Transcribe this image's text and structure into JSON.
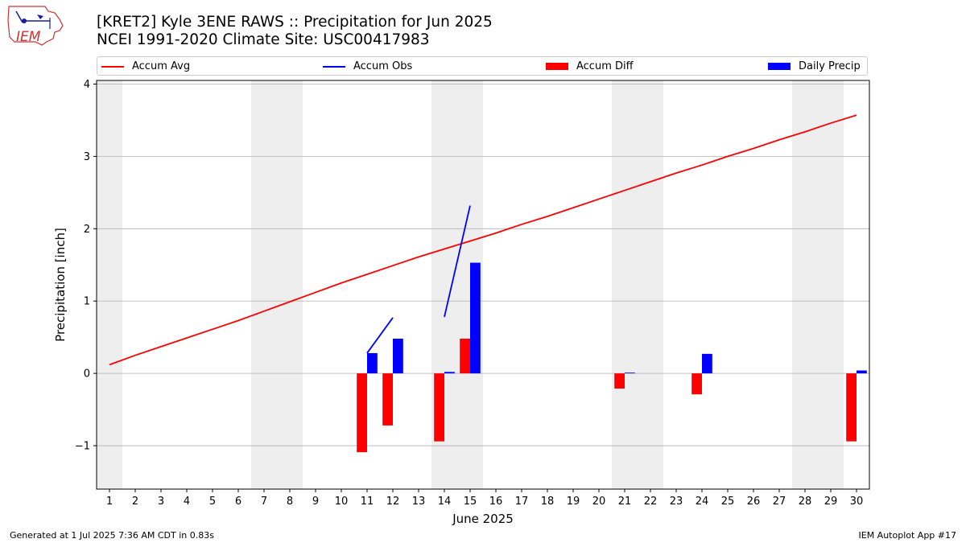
{
  "header": {
    "title_line1": "[KRET2] Kyle 3ENE RAWS :: Precipitation for Jun 2025",
    "title_line2": "NCEI 1991-2020 Climate Site: USC00417983"
  },
  "logo": {
    "text": "IEM"
  },
  "legend": {
    "items": [
      {
        "label": "Accum Avg",
        "kind": "line",
        "color": "#ff0000"
      },
      {
        "label": "Accum Obs",
        "kind": "line",
        "color": "#0000ff"
      },
      {
        "label": "Accum Diff",
        "kind": "patch",
        "color": "#ff0000"
      },
      {
        "label": "Daily Precip",
        "kind": "patch",
        "color": "#0000ff"
      }
    ]
  },
  "footer": {
    "generated": "Generated at 1 Jul 2025 7:36 AM CDT in 0.83s",
    "app": "IEM Autoplot App #17"
  },
  "chart_data": {
    "type": "bar",
    "xlabel": "June 2025",
    "ylabel": "Precipitation [inch]",
    "xlim": [
      0.5,
      30.5
    ],
    "ylim": [
      -1.6,
      4.05
    ],
    "yticks": [
      -1,
      0,
      1,
      2,
      3,
      4
    ],
    "x": [
      1,
      2,
      3,
      4,
      5,
      6,
      7,
      8,
      9,
      10,
      11,
      12,
      13,
      14,
      15,
      16,
      17,
      18,
      19,
      20,
      21,
      22,
      23,
      24,
      25,
      26,
      27,
      28,
      29,
      30
    ],
    "weekend_bands": [
      [
        0.5,
        1.5
      ],
      [
        6.5,
        8.5
      ],
      [
        13.5,
        15.5
      ],
      [
        20.5,
        22.5
      ],
      [
        27.5,
        29.5
      ]
    ],
    "grid": "horizontal",
    "series": [
      {
        "name": "Accum Avg",
        "type": "line",
        "color": "#ff0000",
        "values": [
          0.12,
          0.25,
          0.37,
          0.49,
          0.61,
          0.73,
          0.86,
          0.99,
          1.12,
          1.25,
          1.37,
          1.49,
          1.61,
          1.72,
          1.83,
          1.94,
          2.06,
          2.17,
          2.29,
          2.41,
          2.53,
          2.65,
          2.77,
          2.88,
          3.0,
          3.11,
          3.23,
          3.34,
          3.46,
          3.57
        ]
      },
      {
        "name": "Accum Obs",
        "type": "line",
        "color": "#0000ff",
        "segments": [
          [
            [
              11,
              0.28
            ],
            [
              12,
              0.77
            ]
          ],
          [
            [
              14,
              0.78
            ],
            [
              15,
              2.32
            ]
          ]
        ]
      },
      {
        "name": "Accum Diff",
        "type": "bar",
        "color": "#ff0000",
        "points": [
          [
            11,
            -1.09
          ],
          [
            12,
            -0.72
          ],
          [
            14,
            -0.94
          ],
          [
            15,
            0.48
          ],
          [
            21,
            -0.21
          ],
          [
            24,
            -0.29
          ],
          [
            30,
            -0.94
          ]
        ]
      },
      {
        "name": "Daily Precip",
        "type": "bar",
        "color": "#0000ff",
        "points": [
          [
            11,
            0.28
          ],
          [
            12,
            0.48
          ],
          [
            14,
            0.02
          ],
          [
            15,
            1.53
          ],
          [
            21,
            0.01
          ],
          [
            24,
            0.27
          ],
          [
            30,
            0.04
          ]
        ]
      }
    ]
  }
}
